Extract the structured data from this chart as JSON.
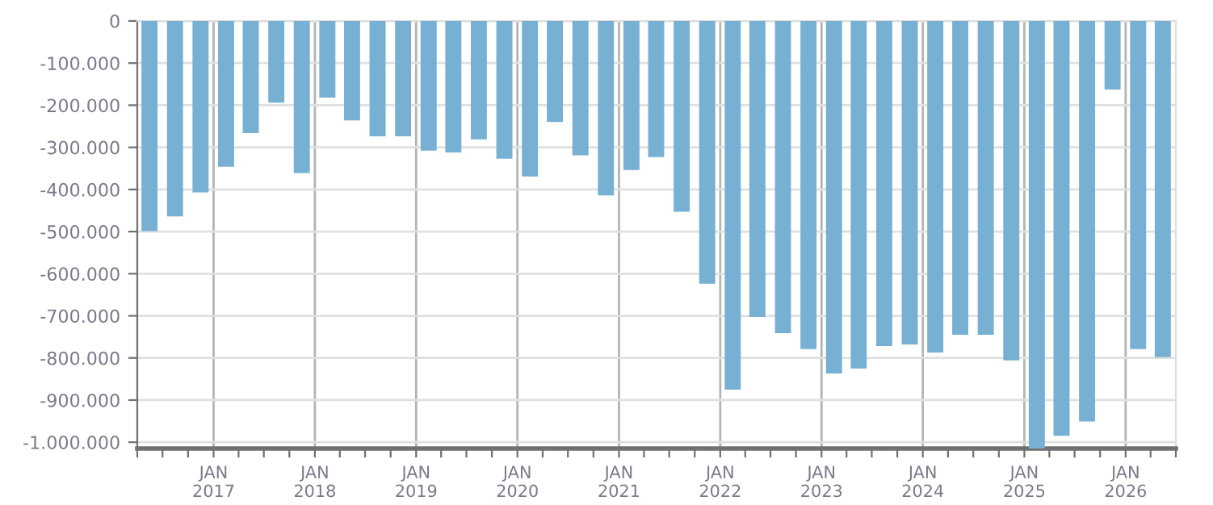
{
  "chart_data": {
    "type": "bar",
    "color": "#78b0d3",
    "x": [
      "2016-05-15",
      "2016-08-15",
      "2016-11-15",
      "2017-02-15",
      "2017-05-15",
      "2017-08-15",
      "2017-11-15",
      "2018-02-15",
      "2018-05-15",
      "2018-08-15",
      "2018-11-15",
      "2019-02-15",
      "2019-05-15",
      "2019-08-15",
      "2019-11-15",
      "2020-02-15",
      "2020-05-15",
      "2020-08-15",
      "2020-11-15",
      "2021-02-15",
      "2021-05-15",
      "2021-08-15",
      "2021-11-15",
      "2022-02-15",
      "2022-05-15",
      "2022-08-15",
      "2022-11-15",
      "2023-02-15",
      "2023-05-15",
      "2023-08-15",
      "2023-11-15",
      "2024-02-15",
      "2024-05-15",
      "2024-08-15",
      "2024-11-15",
      "2025-02-15",
      "2025-05-15",
      "2025-08-15",
      "2025-11-15",
      "2026-02-15",
      "2026-05-15"
    ],
    "values": [
      -499000,
      -464000,
      -407000,
      -346000,
      -266000,
      -194000,
      -361000,
      -182000,
      -236000,
      -274000,
      -274000,
      -308000,
      -312000,
      -281000,
      -327000,
      -369000,
      -240000,
      -319000,
      -414000,
      -354000,
      -323000,
      -453000,
      -624000,
      -875000,
      -703000,
      -741000,
      -779000,
      -837000,
      -825000,
      -772000,
      -768000,
      -787000,
      -745000,
      -745000,
      -806000,
      -1015000,
      -985000,
      -951000,
      -163000,
      -779000,
      -798000
    ],
    "xlim": [
      "2016-04-01",
      "2026-07-01"
    ],
    "xticks": [
      {
        "value": "2016-04-01",
        "label": null
      },
      {
        "value": "2016-07-01",
        "label": null
      },
      {
        "value": "2016-10-01",
        "label": null
      },
      {
        "value": "2017-01-01",
        "label": "JAN\n2017"
      },
      {
        "value": "2017-04-01",
        "label": null
      },
      {
        "value": "2017-07-01",
        "label": null
      },
      {
        "value": "2017-10-01",
        "label": null
      },
      {
        "value": "2018-01-01",
        "label": "JAN\n2018"
      },
      {
        "value": "2018-04-01",
        "label": null
      },
      {
        "value": "2018-07-01",
        "label": null
      },
      {
        "value": "2018-10-01",
        "label": null
      },
      {
        "value": "2019-01-01",
        "label": "JAN\n2019"
      },
      {
        "value": "2019-04-01",
        "label": null
      },
      {
        "value": "2019-07-01",
        "label": null
      },
      {
        "value": "2019-10-01",
        "label": null
      },
      {
        "value": "2020-01-01",
        "label": "JAN\n2020"
      },
      {
        "value": "2020-04-01",
        "label": null
      },
      {
        "value": "2020-07-01",
        "label": null
      },
      {
        "value": "2020-10-01",
        "label": null
      },
      {
        "value": "2021-01-01",
        "label": "JAN\n2021"
      },
      {
        "value": "2021-04-01",
        "label": null
      },
      {
        "value": "2021-07-01",
        "label": null
      },
      {
        "value": "2021-10-01",
        "label": null
      },
      {
        "value": "2022-01-01",
        "label": "JAN\n2022"
      },
      {
        "value": "2022-04-01",
        "label": null
      },
      {
        "value": "2022-07-01",
        "label": null
      },
      {
        "value": "2022-10-01",
        "label": null
      },
      {
        "value": "2023-01-01",
        "label": "JAN\n2023"
      },
      {
        "value": "2023-04-01",
        "label": null
      },
      {
        "value": "2023-07-01",
        "label": null
      },
      {
        "value": "2023-10-01",
        "label": null
      },
      {
        "value": "2024-01-01",
        "label": "JAN\n2024"
      },
      {
        "value": "2024-04-01",
        "label": null
      },
      {
        "value": "2024-07-01",
        "label": null
      },
      {
        "value": "2024-10-01",
        "label": null
      },
      {
        "value": "2025-01-01",
        "label": "JAN\n2025"
      },
      {
        "value": "2025-04-01",
        "label": null
      },
      {
        "value": "2025-07-01",
        "label": null
      },
      {
        "value": "2025-10-01",
        "label": null
      },
      {
        "value": "2026-01-01",
        "label": "JAN\n2026"
      },
      {
        "value": "2026-04-01",
        "label": null
      },
      {
        "value": "2026-07-01",
        "label": null
      }
    ],
    "ylim": [
      -1015000,
      0
    ],
    "yticks": [
      0,
      {
        "value": -100000,
        "label": "-100.000"
      },
      {
        "value": -200000,
        "label": "-200.000"
      },
      {
        "value": -300000,
        "label": "-300.000"
      },
      {
        "value": -400000,
        "label": "-400.000"
      },
      {
        "value": -500000,
        "label": "-500.000"
      },
      {
        "value": -600000,
        "label": "-600.000"
      },
      {
        "value": -700000,
        "label": "-700.000"
      },
      {
        "value": -800000,
        "label": "-800.000"
      },
      {
        "value": -900000,
        "label": "-900.000"
      },
      {
        "value": -1000000,
        "label": "-1.000.000"
      }
    ],
    "grid": true,
    "legend": false
  }
}
